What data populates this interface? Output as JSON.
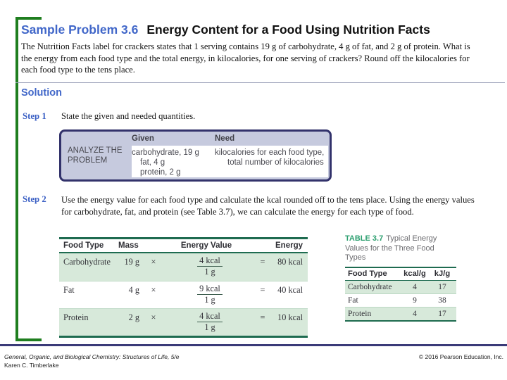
{
  "slide": {
    "problem_label": "Sample Problem 3.6",
    "problem_title": "Energy Content for a Food Using Nutrition Facts",
    "problem_text": "The Nutrition Facts label for crackers states that 1 serving contains 19 g of carbohydrate, 4 g of fat, and 2 g of protein. What is the energy from each food type and the total energy, in kilocalories, for one serving of crackers? Round off the kilocalories for each food type to the tens place.",
    "solution_label": "Solution",
    "step1_label": "Step 1",
    "step1_text": "State the given and needed quantities.",
    "step2_label": "Step 2",
    "step2_text": "Use the energy value for each food type and calculate the kcal rounded off to the tens place. Using the energy values for carbohydrate, fat, and protein (see Table 3.7), we can calculate the energy for each type of food."
  },
  "analyze_box": {
    "label": "ANALYZE THE PROBLEM",
    "given_header": "Given",
    "need_header": "Need",
    "given_lines": [
      "carbohydrate, 19 g",
      "fat, 4 g",
      "protein, 2 g"
    ],
    "need_lines": [
      "kilocalories for each food type,",
      "total number of kilocalories"
    ]
  },
  "energy_table": {
    "headers": {
      "food": "Food Type",
      "mass": "Mass",
      "value": "Energy Value",
      "energy": "Energy"
    },
    "rows": [
      {
        "food": "Carbohydrate",
        "mass": "19 g",
        "times": "×",
        "num": "4 kcal",
        "den": "1 g",
        "eq": "=",
        "energy": "80 kcal"
      },
      {
        "food": "Fat",
        "mass": "4 g",
        "times": "×",
        "num": "9 kcal",
        "den": "1 g",
        "eq": "=",
        "energy": "40 kcal"
      },
      {
        "food": "Protein",
        "mass": "2 g",
        "times": "×",
        "num": "4 kcal",
        "den": "1 g",
        "eq": "=",
        "energy": "10 kcal"
      }
    ]
  },
  "table37": {
    "label": "TABLE 3.7",
    "title": "Typical Energy Values for the Three Food Types",
    "headers": {
      "food": "Food Type",
      "kcal": "kcal/g",
      "kj": "kJ/g"
    },
    "rows": [
      {
        "food": "Carbohydrate",
        "kcal": "4",
        "kj": "17"
      },
      {
        "food": "Fat",
        "kcal": "9",
        "kj": "38"
      },
      {
        "food": "Protein",
        "kcal": "4",
        "kj": "17"
      }
    ]
  },
  "footer": {
    "book": "General, Organic, and Biological Chemistry: Structures of Life, 5/e",
    "author": "Karen C. Timberlake",
    "copyright": "© 2016 Pearson Education, Inc."
  },
  "colors": {
    "accent_blue": "#4167c9",
    "bracket_green": "#1f7e1f",
    "table_rule_green": "#1e6b50",
    "row_stripe_green": "#d7e9da",
    "box_lavender": "#c6cade",
    "box_border_navy": "#32326b",
    "footer_rule_navy": "#3a3a78",
    "table_label_green": "#2ea071"
  }
}
